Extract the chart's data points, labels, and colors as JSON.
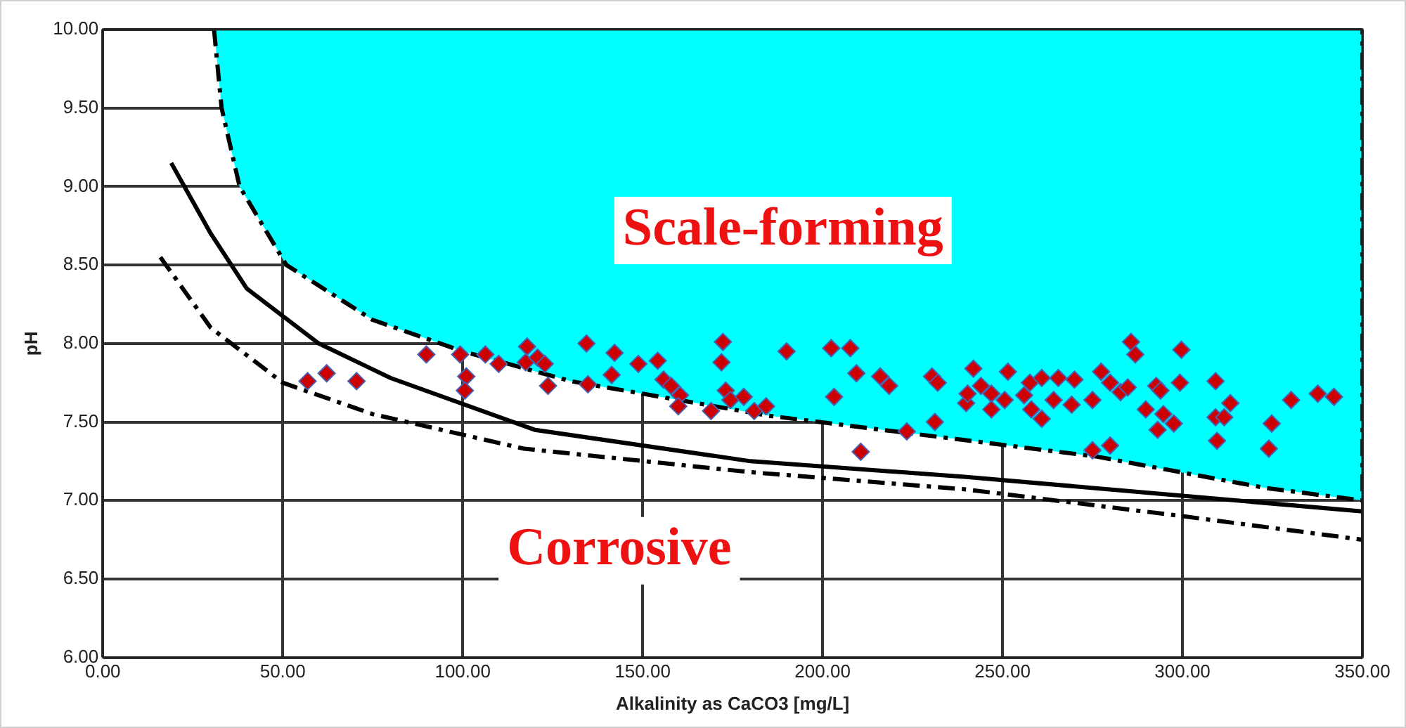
{
  "chart_data": {
    "type": "scatter",
    "xlabel": "Alkalinity as CaCO3 [mg/L]",
    "ylabel": "pH",
    "xlim": [
      0,
      350
    ],
    "ylim": [
      6,
      10
    ],
    "xticks": [
      {
        "value": 0,
        "label": "0.00"
      },
      {
        "value": 50,
        "label": "50.00"
      },
      {
        "value": 100,
        "label": "100.00"
      },
      {
        "value": 150,
        "label": "150.00"
      },
      {
        "value": 200,
        "label": "200.00"
      },
      {
        "value": 250,
        "label": "250.00"
      },
      {
        "value": 300,
        "label": "300.00"
      },
      {
        "value": 350,
        "label": "350.00"
      }
    ],
    "yticks": [
      {
        "value": 6,
        "label": "6.00"
      },
      {
        "value": 6.5,
        "label": "6.50"
      },
      {
        "value": 7,
        "label": "7.00"
      },
      {
        "value": 7.5,
        "label": "7.50"
      },
      {
        "value": 8,
        "label": "8.00"
      },
      {
        "value": 8.5,
        "label": "8.50"
      },
      {
        "value": 9,
        "label": "9.00"
      },
      {
        "value": 9.5,
        "label": "9.50"
      },
      {
        "value": 10,
        "label": "10.00"
      }
    ],
    "grid": true,
    "legend": false,
    "annotations": [
      "Scale-forming",
      "Corrosive"
    ],
    "series": [
      {
        "type": "area",
        "color": "#00ffff",
        "line_style": "dashed",
        "x": [
          30.9,
          33,
          38,
          51,
          75,
          100,
          130,
          160,
          185,
          227,
          276,
          323,
          350,
          350
        ],
        "values": [
          10,
          9.5,
          9,
          8.5,
          8.15,
          7.95,
          7.76,
          7.64,
          7.54,
          7.42,
          7.28,
          7.08,
          7.0,
          10
        ]
      },
      {
        "type": "line",
        "color": "#000000",
        "line_style": "solid",
        "x": [
          19,
          30,
          40,
          60,
          80,
          120,
          180,
          240,
          300,
          350
        ],
        "values": [
          9.15,
          8.7,
          8.35,
          8.0,
          7.78,
          7.45,
          7.25,
          7.15,
          7.03,
          6.93
        ]
      },
      {
        "type": "line",
        "color": "#000000",
        "line_style": "dashed",
        "x": [
          16,
          30,
          50,
          75,
          117,
          180,
          240,
          300,
          350
        ],
        "values": [
          8.55,
          8.1,
          7.75,
          7.55,
          7.33,
          7.18,
          7.07,
          6.9,
          6.75
        ]
      },
      {
        "marker": "diamond",
        "color": "#cc0000",
        "x": [
          56.9,
          62.2,
          70.5,
          89.9,
          99.3,
          101,
          100.6,
          106.3,
          110,
          117.9,
          117.5,
          120.8,
          122.8,
          123.7,
          134.4,
          134.8,
          142.2,
          141.4,
          148.8,
          154.2,
          155.8,
          157.9,
          160.4,
          159.9,
          169,
          171.9,
          172.3,
          173.1,
          174.4,
          178.1,
          181,
          184.3,
          190,
          202.4,
          203.2,
          207.7,
          209.4,
          210.6,
          216,
          218.5,
          223.4,
          230.4,
          232,
          231.2,
          239.9,
          241.9,
          240.3,
          244,
          246.9,
          246.9,
          250.6,
          251.5,
          256,
          257.6,
          258,
          260.9,
          260.9,
          264.2,
          265.5,
          269.2,
          270,
          275,
          275,
          277.4,
          279.9,
          279.9,
          282.8,
          284.8,
          285.7,
          286.9,
          289.8,
          292.7,
          293.9,
          293.1,
          294.7,
          297.6,
          299.3,
          299.7,
          309.2,
          309.6,
          309.2,
          311.6,
          313.3,
          324.8,
          324,
          330.2,
          337.6,
          342.1
        ],
        "values": [
          7.76,
          7.81,
          7.76,
          7.93,
          7.93,
          7.79,
          7.7,
          7.93,
          7.87,
          7.98,
          7.88,
          7.91,
          7.87,
          7.73,
          8.0,
          7.74,
          7.94,
          7.8,
          7.87,
          7.89,
          7.77,
          7.73,
          7.67,
          7.6,
          7.57,
          7.88,
          8.01,
          7.7,
          7.64,
          7.66,
          7.57,
          7.6,
          7.95,
          7.97,
          7.66,
          7.97,
          7.81,
          7.31,
          7.79,
          7.73,
          7.44,
          7.79,
          7.75,
          7.5,
          7.62,
          7.84,
          7.68,
          7.73,
          7.68,
          7.58,
          7.64,
          7.82,
          7.67,
          7.75,
          7.58,
          7.78,
          7.52,
          7.64,
          7.78,
          7.61,
          7.77,
          7.64,
          7.32,
          7.82,
          7.75,
          7.35,
          7.69,
          7.72,
          8.01,
          7.93,
          7.58,
          7.73,
          7.7,
          7.45,
          7.55,
          7.49,
          7.75,
          7.96,
          7.76,
          7.38,
          7.53,
          7.53,
          7.62,
          7.49,
          7.33,
          7.64,
          7.68,
          7.66
        ]
      }
    ]
  }
}
